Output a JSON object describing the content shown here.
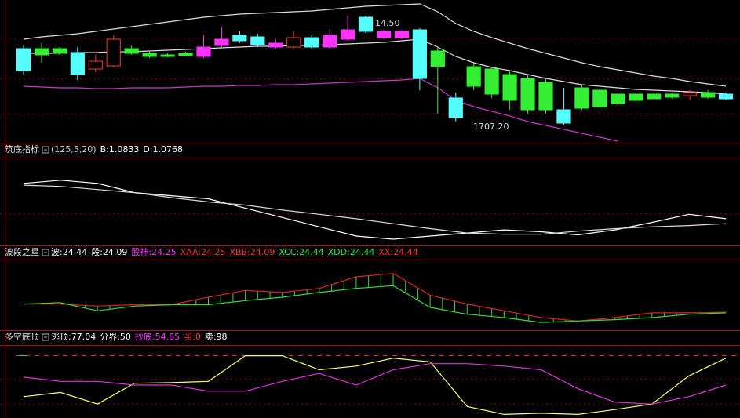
{
  "chart_data": [
    {
      "type": "candlestick",
      "open": [
        118,
        118,
        118,
        113,
        92,
        96,
        118,
        112,
        110,
        112,
        108,
        122,
        135,
        133,
        120,
        120,
        132,
        120,
        130,
        158,
        132,
        132,
        142,
        115,
        55,
        95,
        92,
        85,
        80,
        75,
        40,
        68,
        65,
        60,
        60,
        60,
        60,
        58,
        62,
        60
      ],
      "close": [
        90,
        110,
        112,
        85,
        102,
        130,
        112,
        108,
        108,
        109,
        120,
        130,
        128,
        123,
        125,
        132,
        120,
        135,
        142,
        140,
        140,
        140,
        80,
        95,
        30,
        70,
        60,
        52,
        40,
        40,
        23,
        42,
        44,
        48,
        52,
        54,
        56,
        62,
        56,
        54
      ],
      "high": [
        122,
        125,
        120,
        120,
        110,
        135,
        122,
        114,
        112,
        114,
        135,
        145,
        140,
        137,
        130,
        140,
        135,
        142,
        160,
        160,
        142,
        142,
        144,
        120,
        62,
        100,
        95,
        90,
        85,
        80,
        68,
        72,
        68,
        62,
        62,
        62,
        62,
        65,
        65,
        62
      ],
      "low": [
        85,
        100,
        110,
        78,
        88,
        94,
        110,
        106,
        107,
        108,
        106,
        120,
        125,
        120,
        118,
        118,
        118,
        118,
        128,
        138,
        130,
        130,
        65,
        35,
        25,
        65,
        55,
        40,
        35,
        35,
        20,
        40,
        42,
        45,
        50,
        52,
        54,
        52,
        54,
        52
      ],
      "colors": [
        "#55ffff",
        "#33ee33",
        "#33ee33",
        "#55ffff",
        "#ff3333",
        "#ff3333",
        "#33ee33",
        "#33ee33",
        "#33ee33",
        "#33ee33",
        "#ff33ff",
        "#ff33ff",
        "#55ffff",
        "#55ffff",
        "#ff33ff",
        "#ff3333",
        "#55ffff",
        "#ff33ff",
        "#ff33ff",
        "#55ffff",
        "#ff33ff",
        "#ff33ff",
        "#55ffff",
        "#33ee33",
        "#55ffff",
        "#33ee33",
        "#33ee33",
        "#33ee33",
        "#33ee33",
        "#33ee33",
        "#55ffff",
        "#33ee33",
        "#33ee33",
        "#33ee33",
        "#33ee33",
        "#33ee33",
        "#33ee33",
        "#ff3333",
        "#33ee33",
        "#55ffff"
      ],
      "series": [
        {
          "color": "#dddddd",
          "values": [
            130,
            133,
            135,
            137,
            140,
            143,
            146,
            149,
            152,
            155,
            158,
            160,
            162,
            163,
            164,
            165,
            166,
            168,
            170,
            172,
            173,
            174,
            175,
            165,
            150,
            140,
            132,
            125,
            118,
            112,
            106,
            100,
            95,
            91,
            87,
            83,
            80,
            76,
            73,
            70
          ]
        },
        {
          "color": "#dddddd",
          "values": [
            112,
            112,
            112,
            113,
            113,
            114,
            114,
            115,
            116,
            117,
            118,
            119,
            120,
            121,
            121,
            122,
            122,
            123,
            124,
            125,
            126,
            128,
            130,
            120,
            108,
            100,
            94,
            90,
            85,
            80,
            76,
            72,
            70,
            68,
            66,
            65,
            64,
            63,
            62,
            60
          ]
        },
        {
          "color": "#cc33cc",
          "values": [
            70,
            69,
            68,
            68,
            67,
            67,
            68,
            68,
            68,
            69,
            70,
            70,
            71,
            71,
            72,
            72,
            73,
            74,
            75,
            76,
            77,
            78,
            80,
            68,
            52,
            44,
            38,
            32,
            25,
            20,
            15,
            10,
            5,
            0,
            null,
            null,
            null,
            null,
            null,
            null
          ]
        }
      ],
      "annotations": [
        "14.50",
        "1707.20"
      ],
      "ylim": [
        0,
        180
      ]
    },
    {
      "type": "line",
      "title": "筑底指标",
      "legend": [
        {
          "text": "(125,5,20)",
          "color": "#cccccc"
        },
        {
          "text": "B:1.0833",
          "color": "#ffffff"
        },
        {
          "text": "D:1.0768",
          "color": "#ffffff"
        }
      ],
      "series": [
        {
          "color": "#ffffff",
          "values": [
            90,
            95,
            90,
            75,
            70,
            65,
            50,
            35,
            20,
            5,
            0,
            5,
            10,
            15,
            12,
            7,
            15,
            27,
            40,
            33
          ]
        },
        {
          "color": "#dddddd",
          "values": [
            87,
            85,
            80,
            75,
            67,
            60,
            55,
            47,
            40,
            33,
            25,
            17,
            10,
            8,
            8,
            13,
            17,
            20,
            22,
            25
          ]
        }
      ],
      "ylim": [
        0,
        120
      ]
    },
    {
      "type": "line",
      "title": "波段之星",
      "legend": [
        {
          "text": "波:24.44",
          "color": "#ffffff"
        },
        {
          "text": "段:24.09",
          "color": "#ffffff"
        },
        {
          "text": "股神:24.25",
          "color": "#ff33ff"
        },
        {
          "text": "XAA:24.25",
          "color": "#ff3333"
        },
        {
          "text": "XBB:24.09",
          "color": "#ff3333"
        },
        {
          "text": "XCC:24.44",
          "color": "#33ee33"
        },
        {
          "text": "XDD:24.44",
          "color": "#33ee33"
        },
        {
          "text": "XX:24.44",
          "color": "#ff3333"
        }
      ],
      "series": [
        {
          "color": "#dd2222",
          "values": [
            35,
            35,
            32,
            34,
            34,
            45,
            55,
            52,
            58,
            75,
            80,
            48,
            35,
            25,
            15,
            10,
            15,
            22,
            22,
            23
          ]
        },
        {
          "color": "#33dd33",
          "values": [
            35,
            37,
            25,
            32,
            34,
            34,
            40,
            45,
            52,
            58,
            62,
            30,
            20,
            15,
            8,
            10,
            12,
            15,
            20,
            22
          ]
        }
      ],
      "ylim": [
        0,
        90
      ]
    },
    {
      "type": "line",
      "title": "多空底顶",
      "legend": [
        {
          "text": "逃顶:77.04",
          "color": "#ffffff"
        },
        {
          "text": "分界:50",
          "color": "#ffffff"
        },
        {
          "text": "抄底:54.65",
          "color": "#ff33ff"
        },
        {
          "text": "买:0",
          "color": "#ff3333"
        },
        {
          "text": "卖:98",
          "color": "#ffffff"
        }
      ],
      "series": [
        {
          "color": "#ffff66",
          "values": [
            31,
            38,
            19,
            53,
            54,
            56,
            98,
            98,
            75,
            81,
            94,
            88,
            15,
            2,
            4,
            2,
            10,
            19,
            65,
            94
          ]
        },
        {
          "color": "#dd33dd",
          "values": [
            63,
            56,
            56,
            50,
            50,
            40,
            40,
            56,
            69,
            50,
            75,
            85,
            85,
            81,
            75,
            44,
            22,
            19,
            31,
            50
          ]
        }
      ],
      "ref_line": 98,
      "ylim": [
        0,
        100
      ]
    }
  ]
}
